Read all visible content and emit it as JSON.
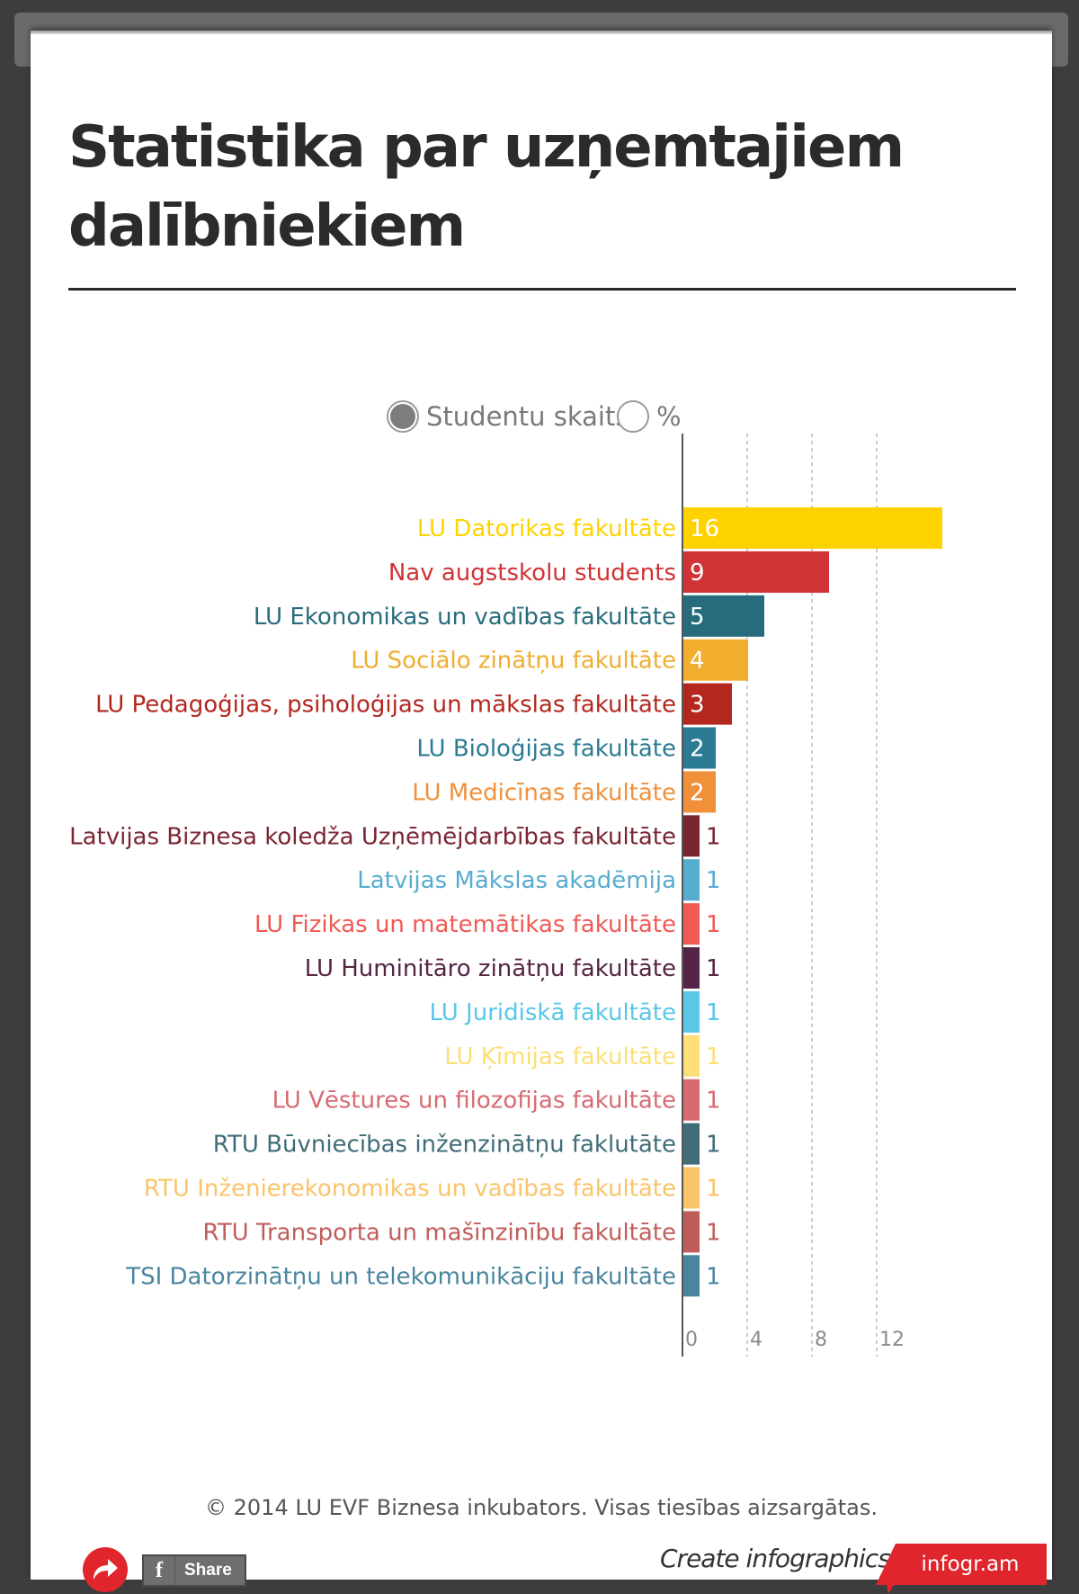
{
  "title": "Statistika par uzņemtajiem dalībniekiem",
  "toggle": {
    "count_label": "Studentu skaits",
    "percent_label": "%",
    "selected": "Studentu skaits"
  },
  "chart_data": {
    "type": "bar",
    "orientation": "horizontal",
    "title": "",
    "xlabel": "",
    "ylabel": "",
    "xlim": [
      0,
      16
    ],
    "xticks": [
      0,
      4,
      8,
      12
    ],
    "grid": true,
    "categories": [
      "LU Datorikas fakultāte",
      "Nav augstskolu students",
      "LU Ekonomikas un vadības fakultāte",
      "LU Sociālo zinātņu fakultāte",
      "LU Pedagoģijas, psiholoģijas un mākslas fakultāte",
      "LU Bioloģijas fakultāte",
      "LU Medicīnas fakultāte",
      "Latvijas Biznesa koledža Uzņēmējdarbības fakultāte",
      "Latvijas Mākslas akadēmija",
      "LU Fizikas un matemātikas fakultāte",
      "LU Huminitāro zinātņu fakultāte",
      "LU Juridiskā fakultāte",
      "LU Ķīmijas fakultāte",
      "LU Vēstures un filozofijas fakultāte",
      "RTU Būvniecības inženzinātņu faklutāte",
      "RTU Inženierekonomikas un vadības fakultāte",
      "RTU Transporta un mašīnzinību fakultāte",
      "TSI Datorzinātņu un telekomunikāciju fakultāte"
    ],
    "values": [
      16,
      9,
      5,
      4,
      3,
      2,
      2,
      1,
      1,
      1,
      1,
      1,
      1,
      1,
      1,
      1,
      1,
      1
    ],
    "colors": [
      "#ffd300",
      "#d03335",
      "#276c7c",
      "#f0ad2e",
      "#b3271f",
      "#2b7b94",
      "#f0903a",
      "#7b2532",
      "#56acd1",
      "#f05a55",
      "#552545",
      "#59c7e8",
      "#fddf75",
      "#d66b71",
      "#3f6c78",
      "#fac46a",
      "#c05d5a",
      "#4a85a0"
    ]
  },
  "footer": {
    "copyright": "© 2014 LU EVF Biznesa inkubators. Visas tiesības aizsargātas.",
    "share_label": "Share",
    "create_text": "Create infographics",
    "brand": "infogr.am"
  }
}
